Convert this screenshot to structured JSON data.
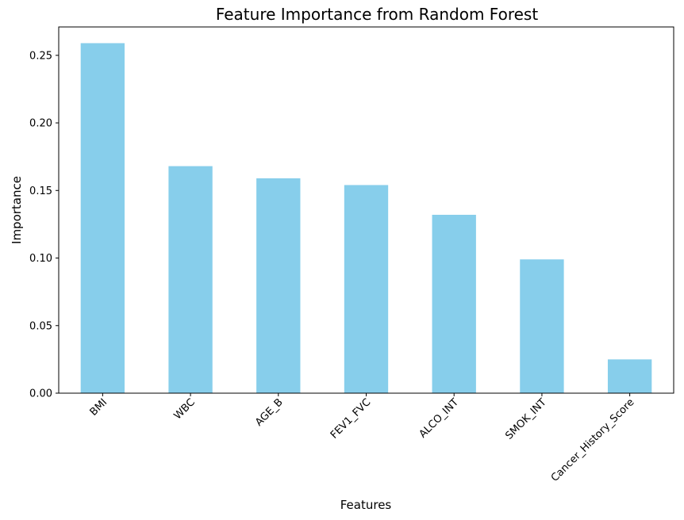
{
  "chart_data": {
    "type": "bar",
    "title": "Feature Importance from Random Forest",
    "xlabel": "Features",
    "ylabel": "Importance",
    "categories": [
      "BMI",
      "WBC",
      "AGE_B",
      "FEV1_FVC",
      "ALCO_INT",
      "SMOK_INT",
      "Cancer_History_Score"
    ],
    "values": [
      0.259,
      0.168,
      0.159,
      0.154,
      0.132,
      0.099,
      0.025
    ],
    "ylim": [
      0,
      0.271
    ],
    "yticks": [
      0.0,
      0.05,
      0.1,
      0.15,
      0.2,
      0.25
    ],
    "ytick_labels": [
      "0.00",
      "0.05",
      "0.10",
      "0.15",
      "0.20",
      "0.25"
    ],
    "grid": false,
    "legend": "none",
    "bar_color": "#87CEEB"
  }
}
